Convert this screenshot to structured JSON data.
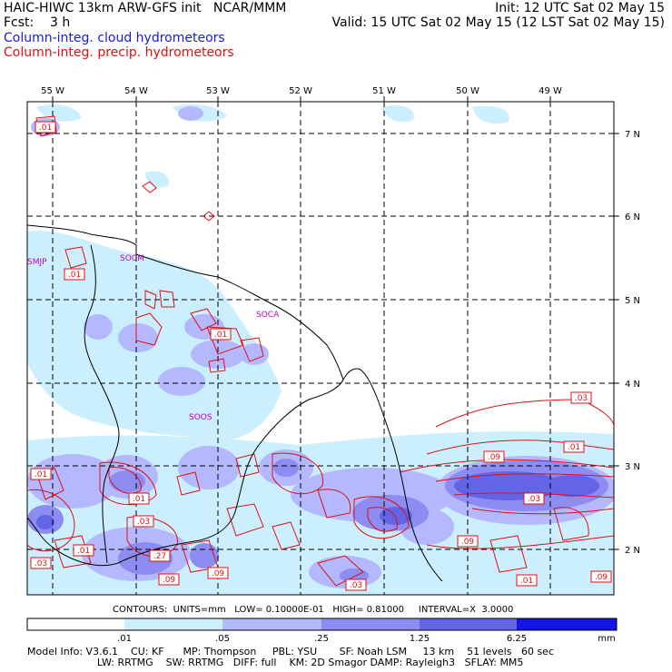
{
  "header": {
    "line1_left": "HAIC-HIWC 13km ARW-GFS init   NCAR/MMM",
    "line1_right": "Init: 12 UTC Sat 02 May 15",
    "line2_left": "Fcst:    3 h",
    "line2_right": "Valid: 15 UTC Sat 02 May 15 (12 LST Sat 02 May 15)",
    "line3": "Column-integ. cloud hydrometeors",
    "line4": "Column-integ. precip. hydrometeors"
  },
  "colors": {
    "cloud_series": "#1a1ad8",
    "precip_series": "#e01010",
    "station_labels": "#c000c0",
    "shade_1": "#ccefff",
    "shade_2": "#b4b8ff",
    "shade_3": "#8c8cf2",
    "shade_4": "#6464e6",
    "shade_5": "#3c3ce6",
    "shade_6": "#1414e6"
  },
  "map": {
    "lon_labels": [
      "55 W",
      "54 W",
      "53 W",
      "52 W",
      "51 W",
      "50 W",
      "49 W"
    ],
    "lat_labels": [
      "7 N",
      "6 N",
      "5 N",
      "4 N",
      "3 N",
      "2 N"
    ],
    "stations": [
      "SMJP",
      "SOCM",
      "SOCA",
      "SOOS"
    ],
    "contour_labels": [
      ".01",
      ".01",
      ".01",
      ".01",
      ".01",
      ".03",
      ".01",
      ".03",
      ".03",
      ".01",
      ".27",
      ".09",
      ".09",
      ".03",
      ".09",
      ".09",
      ".03",
      ".01",
      ".09"
    ]
  },
  "contour_info": "CONTOURS:  UNITS=mm   LOW= 0.10000E-01   HIGH= 0.81000     INTERVAL=X  3.0000",
  "colorbar": {
    "ticks": [
      ".01",
      ".05",
      ".25",
      "1.25",
      "6.25"
    ],
    "units": "mm"
  },
  "footer": {
    "line1": "Model Info: V3.6.1    CU: KF      MP: Thompson     PBL: YSU       SF: Noah LSM     13 km    51 levels   60 sec",
    "line2": "                      LW: RRTMG    SW: RRTMG   DIFF: full    KM: 2D Smagor DAMP: Rayleigh3   SFLAY: MM5"
  }
}
